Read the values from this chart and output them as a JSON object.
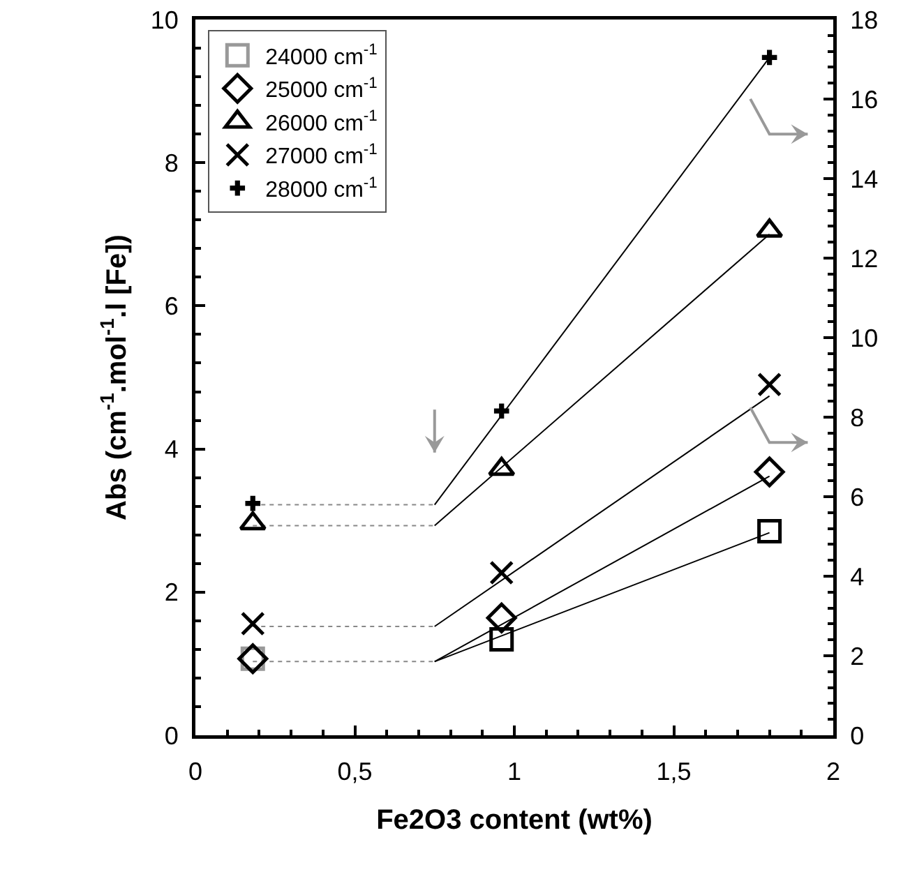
{
  "chart_data": {
    "type": "scatter",
    "xlabel": "Fe2O3 content (wt%)",
    "ylabel": "Abs (cm$^{-1}$.mol$^{-1}$.l [Fe])",
    "xlim": [
      0,
      2
    ],
    "xticks": [
      0,
      {
        "value": 0.5,
        "label": "0,5"
      },
      1,
      {
        "value": 1.5,
        "label": "1,5"
      },
      2
    ],
    "ylim": [
      0,
      10
    ],
    "yticks": [
      0,
      2,
      4,
      6,
      8,
      10
    ],
    "y2lim": [
      0,
      18
    ],
    "y2ticks": [
      0,
      2,
      4,
      6,
      8,
      10,
      12,
      14,
      16,
      18
    ],
    "grid": false,
    "legend": "top left",
    "series": [
      {
        "name": "24000 cm$^{-1}$",
        "marker": "square",
        "colors": [
          "#999999",
          "#000000",
          "#000000"
        ],
        "x": [
          0.18,
          0.96,
          1.8
        ],
        "values": [
          1.07,
          1.34,
          2.85
        ]
      },
      {
        "name": "25000 cm$^{-1}$",
        "marker": "diamond",
        "color": "#000000",
        "x": [
          0.18,
          0.96,
          1.8
        ],
        "values": [
          1.07,
          1.64,
          3.68
        ]
      },
      {
        "name": "26000 cm$^{-1}$",
        "marker": "triangle",
        "color": "#000000",
        "x": [
          0.18,
          0.96,
          1.8
        ],
        "values": [
          2.96,
          3.72,
          7.05
        ]
      },
      {
        "name": "27000 cm$^{-1}$",
        "marker": "cross",
        "color": "#000000",
        "x": [
          0.18,
          0.96,
          1.8
        ],
        "values": [
          1.56,
          2.27,
          4.9
        ]
      },
      {
        "name": "28000 cm$^{-1}$",
        "marker": "cross",
        "color": "#000000",
        "x": [
          0.18,
          0.96,
          1.8
        ],
        "values": [
          3.24,
          4.53,
          9.47
        ]
      },
      {
        "type": "line",
        "line_style": "dotted",
        "color": "#888888",
        "x": [
          0.18,
          0.75
        ],
        "values": [
          1.03,
          1.03
        ]
      },
      {
        "type": "line",
        "line_style": "dotted",
        "color": "#888888",
        "x": [
          0.18,
          0.75
        ],
        "values": [
          1.52,
          1.52
        ]
      },
      {
        "type": "line",
        "line_style": "dotted",
        "color": "#888888",
        "x": [
          0.18,
          0.75
        ],
        "values": [
          2.93,
          2.93
        ]
      },
      {
        "type": "line",
        "line_style": "dotted",
        "color": "#888888",
        "x": [
          0.18,
          0.75
        ],
        "values": [
          3.22,
          3.22
        ]
      },
      {
        "type": "line",
        "line_style": "solid",
        "color": "#000000",
        "x": [
          0.75,
          1.8
        ],
        "values": [
          1.03,
          2.83
        ]
      },
      {
        "type": "line",
        "line_style": "solid",
        "color": "#000000",
        "x": [
          0.75,
          1.8
        ],
        "values": [
          1.03,
          3.62
        ]
      },
      {
        "type": "line",
        "line_style": "solid",
        "color": "#000000",
        "x": [
          0.75,
          1.8
        ],
        "values": [
          1.52,
          4.74
        ]
      },
      {
        "type": "line",
        "line_style": "solid",
        "color": "#000000",
        "x": [
          0.75,
          1.8
        ],
        "values": [
          2.93,
          7.0
        ]
      },
      {
        "type": "line",
        "line_style": "solid",
        "color": "#000000",
        "x": [
          0.75,
          1.8
        ],
        "values": [
          3.22,
          9.47
        ]
      }
    ]
  }
}
